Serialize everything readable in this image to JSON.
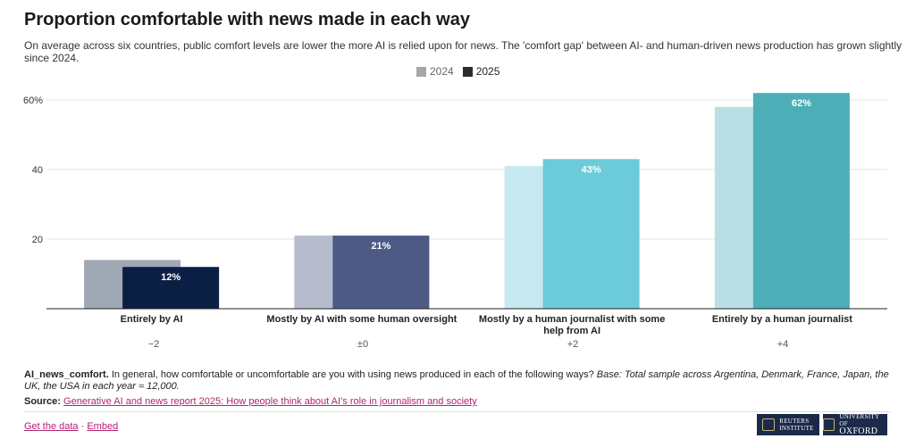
{
  "title": "Proportion comfortable with news made in each way",
  "subtitle": "On average across six countries, public comfort levels are lower the more AI is relied upon for news. The 'comfort gap' between AI- and human-driven news production has grown slightly since 2024.",
  "legend": {
    "label_2024": "2024",
    "label_2025": "2025",
    "color_2024": "#a8a8a8",
    "color_2025": "#2b2b2b"
  },
  "chart_data": {
    "type": "bar",
    "categories": [
      "Entirely by AI",
      "Mostly by AI with some human oversight",
      "Mostly by a human journalist with some help from AI",
      "Entirely by a human journalist"
    ],
    "series": [
      {
        "name": "2024",
        "values": [
          14,
          21,
          41,
          58
        ],
        "colors": [
          "#9fa8b4",
          "#b6bccb",
          "#c6e8ef",
          "#b9dfe5"
        ]
      },
      {
        "name": "2025",
        "values": [
          12,
          21,
          43,
          62
        ],
        "colors": [
          "#0b1f45",
          "#4d5a86",
          "#6ccbd9",
          "#4daeb8"
        ]
      }
    ],
    "data_labels_2025": [
      "12%",
      "21%",
      "43%",
      "62%"
    ],
    "yticks": [
      "20",
      "40",
      "60%"
    ],
    "ylim": [
      0,
      62
    ],
    "grid": true,
    "legend_position": "top-center"
  },
  "differences": [
    "−2",
    "±0",
    "+2",
    "+4"
  ],
  "question": {
    "id": "AI_news_comfort.",
    "text": "In general, how comfortable or uncomfortable are you with using news produced in each of the following ways?",
    "base": "Base: Total sample across Argentina, Denmark, France, Japan, the UK, the USA in each year ≈ 12,000."
  },
  "source": {
    "label": "Source:",
    "link_text": "Generative AI and news report 2025: How people think about AI’s role in journalism and society"
  },
  "footer": {
    "get_data": "Get the data",
    "separator": "·",
    "embed": "Embed"
  },
  "logos": {
    "reuters_line1": "REUTERS",
    "reuters_line2": "INSTITUTE",
    "oxford_line1": "UNIVERSITY OF",
    "oxford_line2": "OXFORD"
  }
}
